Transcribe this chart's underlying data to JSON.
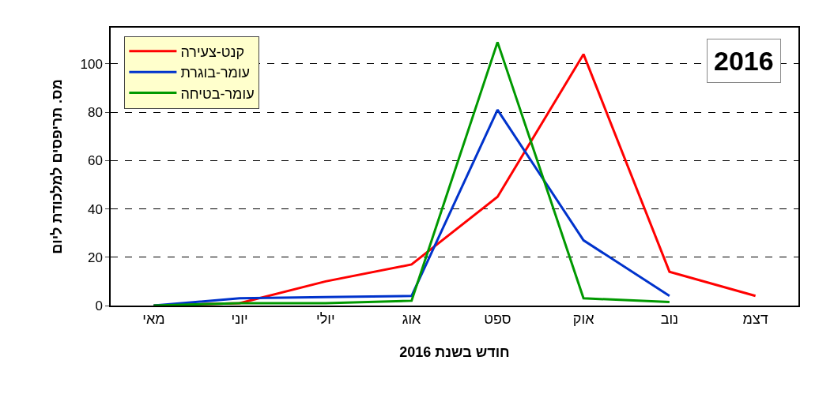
{
  "chart_data": {
    "type": "line",
    "xlabel": "חודש בשנת 2016",
    "ylabel": "מס. תריפסים למלכודת ליום",
    "annotations": [
      "2016"
    ],
    "categories": [
      "מאי",
      "יוני",
      "יולי",
      "אוג",
      "ספט",
      "אוק",
      "נוב",
      "דצמ"
    ],
    "series": [
      {
        "name": "קנט-צעירה",
        "color": "#ff0000",
        "values": [
          0,
          1,
          10,
          17,
          45,
          104,
          14,
          4
        ]
      },
      {
        "name": "עומר-בוגרת",
        "color": "#0033cc",
        "values": [
          0,
          3,
          3.5,
          4,
          81,
          27,
          4,
          null
        ]
      },
      {
        "name": "עומר-בטיחה",
        "color": "#009900",
        "values": [
          0,
          1,
          1,
          2,
          109,
          3,
          1.5,
          null
        ]
      }
    ],
    "ylim": [
      0,
      115
    ],
    "yticks": [
      0,
      20,
      40,
      60,
      80,
      100
    ],
    "grid": "y",
    "legend": "top left",
    "marker": "none",
    "line_style": "solid"
  }
}
